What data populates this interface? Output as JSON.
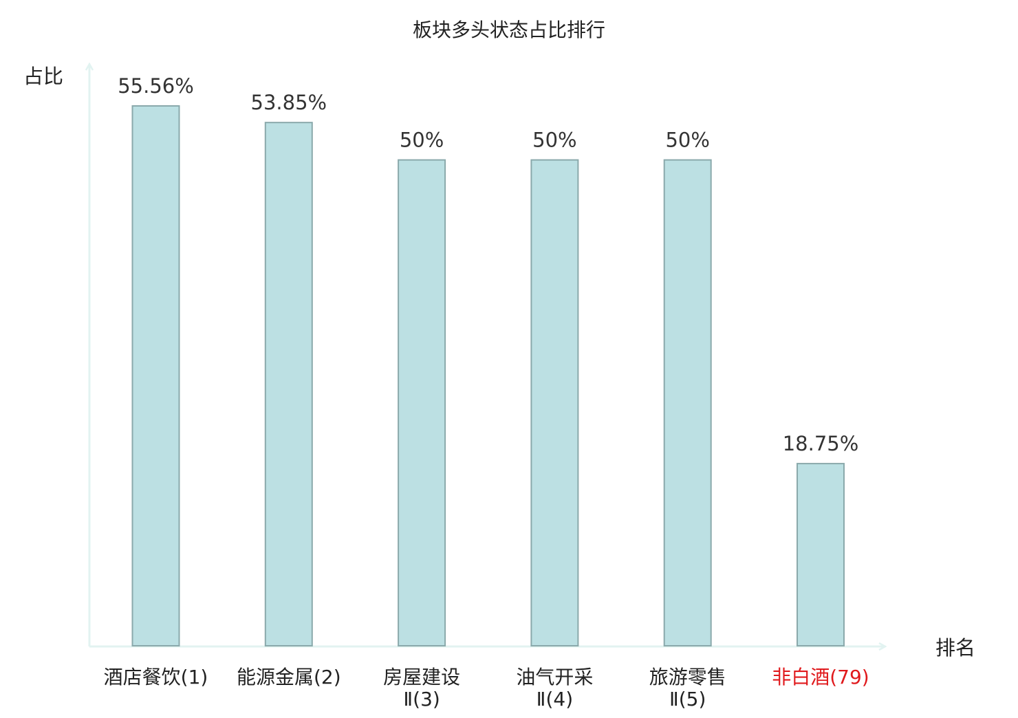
{
  "chart_data": {
    "type": "bar",
    "title": "板块多头状态占比排行",
    "ylabel": "占比",
    "xlabel": "排名",
    "categories": [
      [
        "酒店餐饮(1)"
      ],
      [
        "能源金属(2)"
      ],
      [
        "房屋建设",
        "Ⅱ(3)"
      ],
      [
        "油气开采",
        "Ⅱ(4)"
      ],
      [
        "旅游零售",
        "Ⅱ(5)"
      ],
      [
        "非白酒(79)"
      ]
    ],
    "values": [
      55.56,
      53.85,
      50,
      50,
      50,
      18.75
    ],
    "value_labels": [
      "55.56%",
      "53.85%",
      "50%",
      "50%",
      "50%",
      "18.75%"
    ],
    "highlight_index": 5,
    "ylim": [
      0,
      55.56
    ],
    "grid": false,
    "legend": "none"
  },
  "colors": {
    "bar_fill": "#bce0e3",
    "bar_stroke": "#8aa9ab",
    "axis": "#e2f3f1",
    "text": "#222222",
    "value_label": "#333333",
    "highlight": "#e0191c"
  }
}
